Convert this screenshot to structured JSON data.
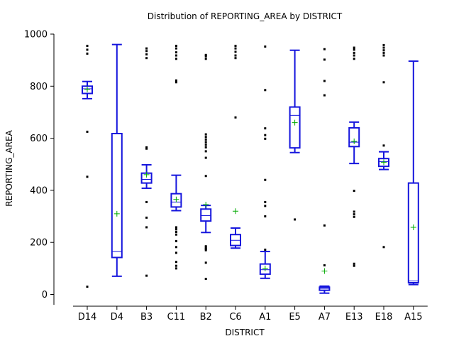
{
  "chart_data": {
    "type": "boxplot",
    "title": "Distribution of REPORTING_AREA by DISTRICT",
    "xlabel": "DISTRICT",
    "ylabel": "REPORTING_AREA",
    "ylim": [
      -40,
      1000
    ],
    "yticks": [
      0,
      200,
      400,
      600,
      800,
      1000
    ],
    "grid": false,
    "legend": "none",
    "colors": {
      "box": "#1515dd",
      "mean": "#00aa00",
      "outlier": "#000000"
    },
    "categories": [
      "D14",
      "D4",
      "B3",
      "C11",
      "B2",
      "C6",
      "A1",
      "E5",
      "A7",
      "E13",
      "E18",
      "A15"
    ],
    "boxes": [
      {
        "category": "D14",
        "whisker_low": 752,
        "q1": 772,
        "median": 790,
        "q3": 800,
        "whisker_high": 818,
        "mean": 788,
        "outliers": [
          30,
          452,
          625,
          925,
          940,
          955
        ]
      },
      {
        "category": "D4",
        "whisker_low": 70,
        "q1": 142,
        "median": 165,
        "q3": 618,
        "whisker_high": 960,
        "mean": 310,
        "outliers": []
      },
      {
        "category": "B3",
        "whisker_low": 408,
        "q1": 428,
        "median": 442,
        "q3": 466,
        "whisker_high": 498,
        "mean": 460,
        "outliers": [
          72,
          258,
          295,
          355,
          560,
          565,
          908,
          922,
          935,
          945
        ]
      },
      {
        "category": "C11",
        "whisker_low": 322,
        "q1": 336,
        "median": 355,
        "q3": 387,
        "whisker_high": 458,
        "mean": 365,
        "outliers": [
          100,
          110,
          125,
          160,
          182,
          205,
          230,
          240,
          250,
          258,
          815,
          822,
          905,
          918,
          930,
          945,
          955
        ]
      },
      {
        "category": "B2",
        "whisker_low": 238,
        "q1": 282,
        "median": 303,
        "q3": 328,
        "whisker_high": 342,
        "mean": 345,
        "outliers": [
          60,
          122,
          170,
          175,
          180,
          185,
          455,
          525,
          550,
          565,
          575,
          585,
          595,
          605,
          615,
          905,
          915,
          920
        ]
      },
      {
        "category": "C6",
        "whisker_low": 178,
        "q1": 188,
        "median": 208,
        "q3": 230,
        "whisker_high": 255,
        "mean": 320,
        "outliers": [
          680,
          908,
          918,
          932,
          945,
          955
        ]
      },
      {
        "category": "A1",
        "whisker_low": 62,
        "q1": 78,
        "median": 95,
        "q3": 117,
        "whisker_high": 165,
        "mean": 100,
        "outliers": [
          172,
          300,
          340,
          355,
          440,
          598,
          612,
          638,
          785,
          952
        ]
      },
      {
        "category": "E5",
        "whisker_low": 545,
        "q1": 563,
        "median": 688,
        "q3": 720,
        "whisker_high": 938,
        "mean": 660,
        "outliers": [
          288
        ]
      },
      {
        "category": "A7",
        "whisker_low": 5,
        "q1": 16,
        "median": 23,
        "q3": 28,
        "whisker_high": 32,
        "mean": 90,
        "outliers": [
          112,
          265,
          765,
          820,
          902,
          942
        ]
      },
      {
        "category": "E13",
        "whisker_low": 503,
        "q1": 568,
        "median": 585,
        "q3": 640,
        "whisker_high": 662,
        "mean": 588,
        "outliers": [
          110,
          118,
          298,
          308,
          318,
          398,
          905,
          918,
          928,
          940,
          948
        ]
      },
      {
        "category": "E18",
        "whisker_low": 480,
        "q1": 492,
        "median": 510,
        "q3": 522,
        "whisker_high": 548,
        "mean": 508,
        "outliers": [
          182,
          572,
          815,
          918,
          928,
          938,
          948,
          958
        ]
      },
      {
        "category": "A15",
        "whisker_low": 38,
        "q1": 45,
        "median": 52,
        "q3": 428,
        "whisker_high": 896,
        "mean": 258,
        "outliers": []
      }
    ]
  }
}
